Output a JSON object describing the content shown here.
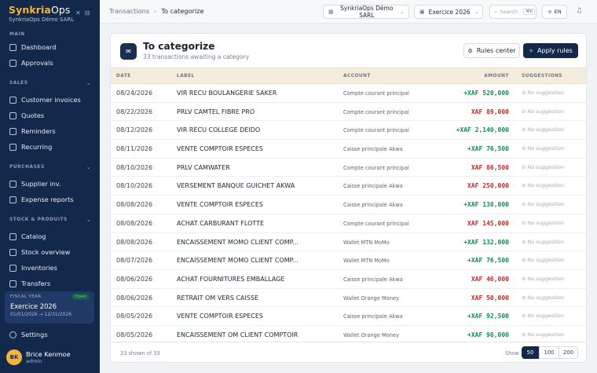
{
  "brand": {
    "name_part1": "Synkria",
    "name_part2": "Ops",
    "company": "SynkriaOps Démo SARL"
  },
  "sidebar": {
    "sections": {
      "main": "MAIN",
      "sales": "SALES",
      "purchases": "PURCHASES",
      "stock": "STOCK & PRODUITS"
    },
    "items": {
      "dashboard": "Dashboard",
      "approvals": "Approvals",
      "customer_invoices": "Customer invoices",
      "quotes": "Quotes",
      "reminders": "Reminders",
      "recurring": "Recurring",
      "supplier_inv": "Supplier inv.",
      "expense_reports": "Expense reports",
      "catalog": "Catalog",
      "stock_overview": "Stock overview",
      "inventories": "Inventories",
      "transfers": "Transfers",
      "settings": "Settings"
    },
    "fiscal": {
      "label": "FISCAL YEAR",
      "status": "Open",
      "year": "Exercice 2026",
      "range": "01/01/2026 → 12/31/2026"
    },
    "user": {
      "initials": "BK",
      "name": "Brice Kenmoe",
      "role": "admin"
    }
  },
  "topbar": {
    "breadcrumb": {
      "parent": "Transactions",
      "current": "To categorize"
    },
    "org": {
      "line1": "SynkriaOps Démo",
      "line2": "SARL"
    },
    "exercise": "Exercice 2026",
    "search": {
      "placeholder": "Search",
      "shortcut": "⌘K"
    },
    "lang": "EN"
  },
  "page": {
    "title": "To categorize",
    "subtitle": "33 transactions awaiting a category",
    "rules_center": "Rules center",
    "apply_rules": "Apply rules"
  },
  "table": {
    "headers": {
      "date": "DATE",
      "label": "LABEL",
      "account": "ACCOUNT",
      "amount": "AMOUNT",
      "suggestions": "SUGGESTIONS"
    },
    "rows": [
      {
        "date": "08/24/2026",
        "label": "VIR RECU BOULANGERIE SAKER",
        "account": "Compte courant principal",
        "amount": "+XAF 520,000",
        "dir": "in",
        "suggestion": "No suggestion"
      },
      {
        "date": "08/22/2026",
        "label": "PRLV CAMTEL FIBRE PRO",
        "account": "Compte courant principal",
        "amount": "XAF 89,000",
        "dir": "out",
        "suggestion": "No suggestion"
      },
      {
        "date": "08/12/2026",
        "label": "VIR RECU COLLEGE DEIDO",
        "account": "Compte courant principal",
        "amount": "+XAF 2,140,000",
        "dir": "in",
        "suggestion": "No suggestion"
      },
      {
        "date": "08/11/2026",
        "label": "VENTE COMPTOIR ESPECES",
        "account": "Caisse principale Akwa",
        "amount": "+XAF 76,500",
        "dir": "in",
        "suggestion": "No suggestion"
      },
      {
        "date": "08/10/2026",
        "label": "PRLV CAMWATER",
        "account": "Compte courant principal",
        "amount": "XAF 86,500",
        "dir": "out",
        "suggestion": "No suggestion"
      },
      {
        "date": "08/10/2026",
        "label": "VERSEMENT BANQUE GUICHET AKWA",
        "account": "Caisse principale Akwa",
        "amount": "XAF 250,000",
        "dir": "out",
        "suggestion": "No suggestion"
      },
      {
        "date": "08/08/2026",
        "label": "VENTE COMPTOIR ESPECES",
        "account": "Caisse principale Akwa",
        "amount": "+XAF 138,000",
        "dir": "in",
        "suggestion": "No suggestion"
      },
      {
        "date": "08/08/2026",
        "label": "ACHAT CARBURANT FLOTTE",
        "account": "Compte courant principal",
        "amount": "XAF 145,000",
        "dir": "out",
        "suggestion": "No suggestion"
      },
      {
        "date": "08/08/2026",
        "label": "ENCAISSEMENT MOMO CLIENT COMP...",
        "account": "Wallet MTN MoMo",
        "amount": "+XAF 132,000",
        "dir": "in",
        "suggestion": "No suggestion"
      },
      {
        "date": "08/07/2026",
        "label": "ENCAISSEMENT MOMO CLIENT COMP...",
        "account": "Wallet MTN MoMo",
        "amount": "+XAF 76,500",
        "dir": "in",
        "suggestion": "No suggestion"
      },
      {
        "date": "08/06/2026",
        "label": "ACHAT FOURNITURES EMBALLAGE",
        "account": "Caisse principale Akwa",
        "amount": "XAF 46,000",
        "dir": "out",
        "suggestion": "No suggestion"
      },
      {
        "date": "08/06/2026",
        "label": "RETRAIT OM VERS CAISSE",
        "account": "Wallet Orange Money",
        "amount": "XAF 50,000",
        "dir": "out",
        "suggestion": "No suggestion"
      },
      {
        "date": "08/05/2026",
        "label": "VENTE COMPTOIR ESPECES",
        "account": "Caisse principale Akwa",
        "amount": "+XAF 92,500",
        "dir": "in",
        "suggestion": "No suggestion"
      },
      {
        "date": "08/05/2026",
        "label": "ENCAISSEMENT OM CLIENT COMPTOIR",
        "account": "Wallet Orange Money",
        "amount": "+XAF 98,000",
        "dir": "in",
        "suggestion": "No suggestion"
      }
    ]
  },
  "footer": {
    "count": "33 shown of 33",
    "show_label": "Show",
    "page_sizes": [
      "50",
      "100",
      "200"
    ],
    "selected": "50"
  }
}
